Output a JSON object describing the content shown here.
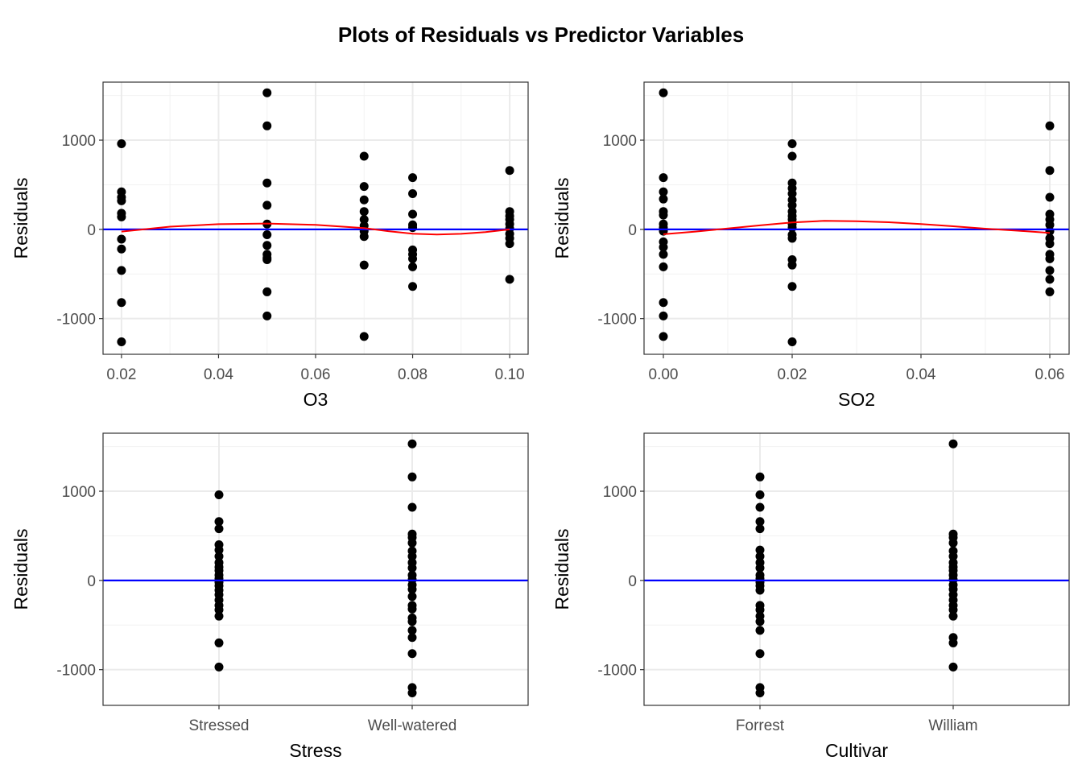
{
  "title": "Plots of Residuals vs Predictor Variables",
  "colors": {
    "points": "#000000",
    "zero_line": "#0000ff",
    "smooth_line": "#ff0000",
    "grid_major": "#ebebeb",
    "grid_minor": "#f2f2f2",
    "panel_border": "#333333",
    "tick_text": "#4d4d4d"
  },
  "chart_data": [
    {
      "id": "o3",
      "type": "scatter",
      "xlabel": "O3",
      "ylabel": "Residuals",
      "x_scale": "continuous",
      "xlim": [
        0.0162,
        0.1038
      ],
      "ylim": [
        -1400,
        1650
      ],
      "x_ticks": [
        0.02,
        0.04,
        0.06,
        0.08,
        0.1
      ],
      "x_tick_labels": [
        "0.02",
        "0.04",
        "0.06",
        "0.08",
        "0.10"
      ],
      "y_ticks": [
        -1000,
        0,
        1000
      ],
      "y_tick_labels": [
        "-1000",
        "0",
        "1000"
      ],
      "zero_line": true,
      "points": [
        {
          "x": 0.02,
          "y": 960
        },
        {
          "x": 0.02,
          "y": 420
        },
        {
          "x": 0.02,
          "y": 360
        },
        {
          "x": 0.02,
          "y": 320
        },
        {
          "x": 0.02,
          "y": 180
        },
        {
          "x": 0.02,
          "y": 140
        },
        {
          "x": 0.02,
          "y": -110
        },
        {
          "x": 0.02,
          "y": -220
        },
        {
          "x": 0.02,
          "y": -460
        },
        {
          "x": 0.02,
          "y": -820
        },
        {
          "x": 0.02,
          "y": -1260
        },
        {
          "x": 0.05,
          "y": 1530
        },
        {
          "x": 0.05,
          "y": 1160
        },
        {
          "x": 0.05,
          "y": 520
        },
        {
          "x": 0.05,
          "y": 270
        },
        {
          "x": 0.05,
          "y": 60
        },
        {
          "x": 0.05,
          "y": -60
        },
        {
          "x": 0.05,
          "y": -180
        },
        {
          "x": 0.05,
          "y": -280
        },
        {
          "x": 0.05,
          "y": -320
        },
        {
          "x": 0.05,
          "y": -340
        },
        {
          "x": 0.05,
          "y": -700
        },
        {
          "x": 0.05,
          "y": -970
        },
        {
          "x": 0.07,
          "y": 820
        },
        {
          "x": 0.07,
          "y": 480
        },
        {
          "x": 0.07,
          "y": 330
        },
        {
          "x": 0.07,
          "y": 200
        },
        {
          "x": 0.07,
          "y": 110
        },
        {
          "x": 0.07,
          "y": 40
        },
        {
          "x": 0.07,
          "y": -20
        },
        {
          "x": 0.07,
          "y": -80
        },
        {
          "x": 0.07,
          "y": -400
        },
        {
          "x": 0.07,
          "y": -1200
        },
        {
          "x": 0.08,
          "y": 580
        },
        {
          "x": 0.08,
          "y": 400
        },
        {
          "x": 0.08,
          "y": 170
        },
        {
          "x": 0.08,
          "y": 50
        },
        {
          "x": 0.08,
          "y": 20
        },
        {
          "x": 0.08,
          "y": -230
        },
        {
          "x": 0.08,
          "y": -280
        },
        {
          "x": 0.08,
          "y": -330
        },
        {
          "x": 0.08,
          "y": -420
        },
        {
          "x": 0.08,
          "y": -640
        },
        {
          "x": 0.1,
          "y": 660
        },
        {
          "x": 0.1,
          "y": 200
        },
        {
          "x": 0.1,
          "y": 150
        },
        {
          "x": 0.1,
          "y": 110
        },
        {
          "x": 0.1,
          "y": 60
        },
        {
          "x": 0.1,
          "y": 10
        },
        {
          "x": 0.1,
          "y": -50
        },
        {
          "x": 0.1,
          "y": -100
        },
        {
          "x": 0.1,
          "y": -160
        },
        {
          "x": 0.1,
          "y": -560
        }
      ],
      "smooth": [
        {
          "x": 0.02,
          "y": -25
        },
        {
          "x": 0.03,
          "y": 30
        },
        {
          "x": 0.04,
          "y": 58
        },
        {
          "x": 0.05,
          "y": 65
        },
        {
          "x": 0.06,
          "y": 50
        },
        {
          "x": 0.07,
          "y": 15
        },
        {
          "x": 0.075,
          "y": -20
        },
        {
          "x": 0.08,
          "y": -48
        },
        {
          "x": 0.085,
          "y": -58
        },
        {
          "x": 0.09,
          "y": -50
        },
        {
          "x": 0.095,
          "y": -30
        },
        {
          "x": 0.1,
          "y": 0
        }
      ]
    },
    {
      "id": "so2",
      "type": "scatter",
      "xlabel": "SO2",
      "ylabel": "Residuals",
      "x_scale": "continuous",
      "xlim": [
        -0.003,
        0.063
      ],
      "ylim": [
        -1400,
        1650
      ],
      "x_ticks": [
        0.0,
        0.02,
        0.04,
        0.06
      ],
      "x_tick_labels": [
        "0.00",
        "0.02",
        "0.04",
        "0.06"
      ],
      "y_ticks": [
        -1000,
        0,
        1000
      ],
      "y_tick_labels": [
        "-1000",
        "0",
        "1000"
      ],
      "zero_line": true,
      "points": [
        {
          "x": 0.0,
          "y": 1530
        },
        {
          "x": 0.0,
          "y": 580
        },
        {
          "x": 0.0,
          "y": 420
        },
        {
          "x": 0.0,
          "y": 340
        },
        {
          "x": 0.0,
          "y": 200
        },
        {
          "x": 0.0,
          "y": 160
        },
        {
          "x": 0.0,
          "y": 60
        },
        {
          "x": 0.0,
          "y": 20
        },
        {
          "x": 0.0,
          "y": -20
        },
        {
          "x": 0.0,
          "y": -140
        },
        {
          "x": 0.0,
          "y": -200
        },
        {
          "x": 0.0,
          "y": -280
        },
        {
          "x": 0.0,
          "y": -420
        },
        {
          "x": 0.0,
          "y": -820
        },
        {
          "x": 0.0,
          "y": -970
        },
        {
          "x": 0.0,
          "y": -1200
        },
        {
          "x": 0.02,
          "y": 960
        },
        {
          "x": 0.02,
          "y": 820
        },
        {
          "x": 0.02,
          "y": 520
        },
        {
          "x": 0.02,
          "y": 460
        },
        {
          "x": 0.02,
          "y": 400
        },
        {
          "x": 0.02,
          "y": 330
        },
        {
          "x": 0.02,
          "y": 270
        },
        {
          "x": 0.02,
          "y": 200
        },
        {
          "x": 0.02,
          "y": 150
        },
        {
          "x": 0.02,
          "y": 110
        },
        {
          "x": 0.02,
          "y": 60
        },
        {
          "x": 0.02,
          "y": 20
        },
        {
          "x": 0.02,
          "y": -60
        },
        {
          "x": 0.02,
          "y": -100
        },
        {
          "x": 0.02,
          "y": -340
        },
        {
          "x": 0.02,
          "y": -400
        },
        {
          "x": 0.02,
          "y": -640
        },
        {
          "x": 0.02,
          "y": -1260
        },
        {
          "x": 0.06,
          "y": 1160
        },
        {
          "x": 0.06,
          "y": 660
        },
        {
          "x": 0.06,
          "y": 360
        },
        {
          "x": 0.06,
          "y": 170
        },
        {
          "x": 0.06,
          "y": 110
        },
        {
          "x": 0.06,
          "y": 50
        },
        {
          "x": 0.06,
          "y": -20
        },
        {
          "x": 0.06,
          "y": -100
        },
        {
          "x": 0.06,
          "y": -160
        },
        {
          "x": 0.06,
          "y": -280
        },
        {
          "x": 0.06,
          "y": -330
        },
        {
          "x": 0.06,
          "y": -460
        },
        {
          "x": 0.06,
          "y": -560
        },
        {
          "x": 0.06,
          "y": -700
        }
      ],
      "smooth": [
        {
          "x": 0.0,
          "y": -55
        },
        {
          "x": 0.005,
          "y": -25
        },
        {
          "x": 0.01,
          "y": 10
        },
        {
          "x": 0.015,
          "y": 45
        },
        {
          "x": 0.02,
          "y": 78
        },
        {
          "x": 0.025,
          "y": 95
        },
        {
          "x": 0.03,
          "y": 92
        },
        {
          "x": 0.035,
          "y": 80
        },
        {
          "x": 0.04,
          "y": 60
        },
        {
          "x": 0.045,
          "y": 35
        },
        {
          "x": 0.05,
          "y": 8
        },
        {
          "x": 0.055,
          "y": -15
        },
        {
          "x": 0.06,
          "y": -40
        }
      ]
    },
    {
      "id": "stress",
      "type": "scatter",
      "xlabel": "Stress",
      "ylabel": "Residuals",
      "x_scale": "discrete",
      "categories": [
        "Stressed",
        "Well-watered"
      ],
      "ylim": [
        -1400,
        1650
      ],
      "y_ticks": [
        -1000,
        0,
        1000
      ],
      "y_tick_labels": [
        "-1000",
        "0",
        "1000"
      ],
      "zero_line": true,
      "points": [
        {
          "x": "Stressed",
          "y": 960
        },
        {
          "x": "Stressed",
          "y": 660
        },
        {
          "x": "Stressed",
          "y": 580
        },
        {
          "x": "Stressed",
          "y": 400
        },
        {
          "x": "Stressed",
          "y": 340
        },
        {
          "x": "Stressed",
          "y": 270
        },
        {
          "x": "Stressed",
          "y": 200
        },
        {
          "x": "Stressed",
          "y": 150
        },
        {
          "x": "Stressed",
          "y": 110
        },
        {
          "x": "Stressed",
          "y": 60
        },
        {
          "x": "Stressed",
          "y": 20
        },
        {
          "x": "Stressed",
          "y": -20
        },
        {
          "x": "Stressed",
          "y": -60
        },
        {
          "x": "Stressed",
          "y": -110
        },
        {
          "x": "Stressed",
          "y": -160
        },
        {
          "x": "Stressed",
          "y": -220
        },
        {
          "x": "Stressed",
          "y": -280
        },
        {
          "x": "Stressed",
          "y": -330
        },
        {
          "x": "Stressed",
          "y": -400
        },
        {
          "x": "Stressed",
          "y": -700
        },
        {
          "x": "Stressed",
          "y": -970
        },
        {
          "x": "Well-watered",
          "y": 1530
        },
        {
          "x": "Well-watered",
          "y": 1160
        },
        {
          "x": "Well-watered",
          "y": 820
        },
        {
          "x": "Well-watered",
          "y": 520
        },
        {
          "x": "Well-watered",
          "y": 480
        },
        {
          "x": "Well-watered",
          "y": 420
        },
        {
          "x": "Well-watered",
          "y": 330
        },
        {
          "x": "Well-watered",
          "y": 270
        },
        {
          "x": "Well-watered",
          "y": 200
        },
        {
          "x": "Well-watered",
          "y": 140
        },
        {
          "x": "Well-watered",
          "y": 60
        },
        {
          "x": "Well-watered",
          "y": 10
        },
        {
          "x": "Well-watered",
          "y": -50
        },
        {
          "x": "Well-watered",
          "y": -100
        },
        {
          "x": "Well-watered",
          "y": -180
        },
        {
          "x": "Well-watered",
          "y": -280
        },
        {
          "x": "Well-watered",
          "y": -320
        },
        {
          "x": "Well-watered",
          "y": -420
        },
        {
          "x": "Well-watered",
          "y": -460
        },
        {
          "x": "Well-watered",
          "y": -560
        },
        {
          "x": "Well-watered",
          "y": -640
        },
        {
          "x": "Well-watered",
          "y": -820
        },
        {
          "x": "Well-watered",
          "y": -1200
        },
        {
          "x": "Well-watered",
          "y": -1260
        }
      ]
    },
    {
      "id": "cultivar",
      "type": "scatter",
      "xlabel": "Cultivar",
      "ylabel": "Residuals",
      "x_scale": "discrete",
      "categories": [
        "Forrest",
        "William"
      ],
      "ylim": [
        -1400,
        1650
      ],
      "y_ticks": [
        -1000,
        0,
        1000
      ],
      "y_tick_labels": [
        "-1000",
        "0",
        "1000"
      ],
      "zero_line": true,
      "points": [
        {
          "x": "Forrest",
          "y": 1160
        },
        {
          "x": "Forrest",
          "y": 960
        },
        {
          "x": "Forrest",
          "y": 820
        },
        {
          "x": "Forrest",
          "y": 660
        },
        {
          "x": "Forrest",
          "y": 580
        },
        {
          "x": "Forrest",
          "y": 340
        },
        {
          "x": "Forrest",
          "y": 270
        },
        {
          "x": "Forrest",
          "y": 200
        },
        {
          "x": "Forrest",
          "y": 140
        },
        {
          "x": "Forrest",
          "y": 60
        },
        {
          "x": "Forrest",
          "y": 20
        },
        {
          "x": "Forrest",
          "y": -20
        },
        {
          "x": "Forrest",
          "y": -60
        },
        {
          "x": "Forrest",
          "y": -110
        },
        {
          "x": "Forrest",
          "y": -280
        },
        {
          "x": "Forrest",
          "y": -330
        },
        {
          "x": "Forrest",
          "y": -400
        },
        {
          "x": "Forrest",
          "y": -460
        },
        {
          "x": "Forrest",
          "y": -560
        },
        {
          "x": "Forrest",
          "y": -820
        },
        {
          "x": "Forrest",
          "y": -1200
        },
        {
          "x": "Forrest",
          "y": -1260
        },
        {
          "x": "William",
          "y": 1530
        },
        {
          "x": "William",
          "y": 520
        },
        {
          "x": "William",
          "y": 480
        },
        {
          "x": "William",
          "y": 420
        },
        {
          "x": "William",
          "y": 330
        },
        {
          "x": "William",
          "y": 270
        },
        {
          "x": "William",
          "y": 200
        },
        {
          "x": "William",
          "y": 150
        },
        {
          "x": "William",
          "y": 110
        },
        {
          "x": "William",
          "y": 60
        },
        {
          "x": "William",
          "y": 10
        },
        {
          "x": "William",
          "y": -50
        },
        {
          "x": "William",
          "y": -100
        },
        {
          "x": "William",
          "y": -160
        },
        {
          "x": "William",
          "y": -220
        },
        {
          "x": "William",
          "y": -280
        },
        {
          "x": "William",
          "y": -330
        },
        {
          "x": "William",
          "y": -400
        },
        {
          "x": "William",
          "y": -640
        },
        {
          "x": "William",
          "y": -700
        },
        {
          "x": "William",
          "y": -970
        }
      ]
    }
  ]
}
